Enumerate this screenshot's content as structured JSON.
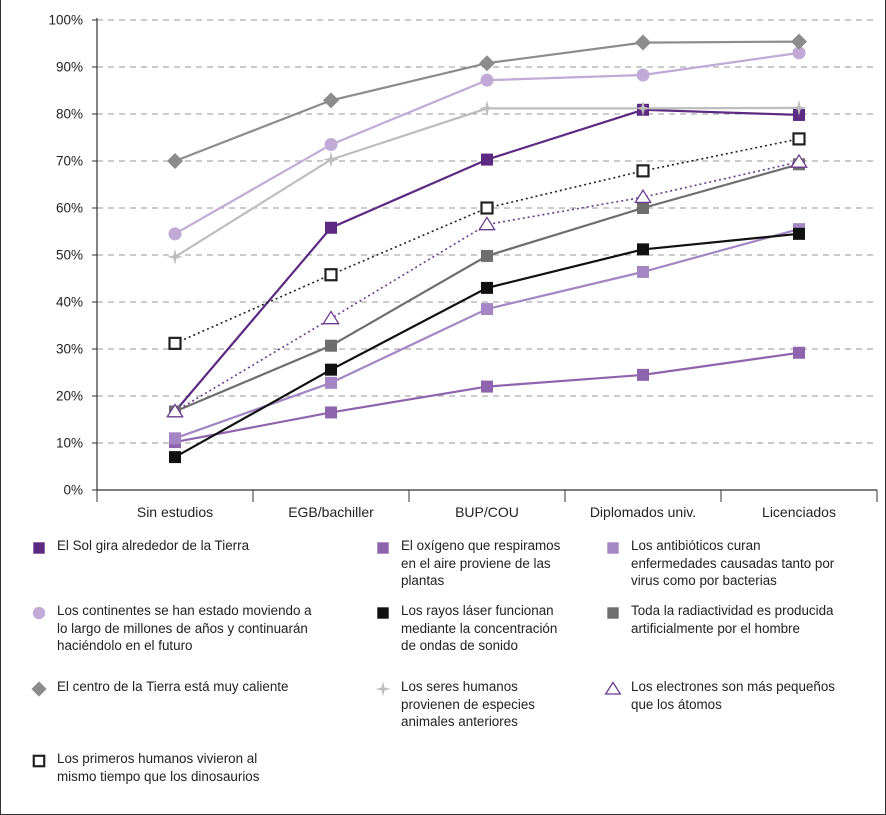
{
  "chart_data": {
    "type": "line",
    "title": "",
    "xlabel": "",
    "ylabel": "",
    "ylim": [
      0,
      100
    ],
    "y_ticks": [
      "0%",
      "10%",
      "20%",
      "30%",
      "40%",
      "50%",
      "60%",
      "70%",
      "80%",
      "90%",
      "100%"
    ],
    "grid": "horizontal dashed",
    "legend_position": "bottom",
    "categories": [
      "Sin estudios",
      "EGB/bachiller",
      "BUP/COU",
      "Diplomados univ.",
      "Licenciados"
    ],
    "series": [
      {
        "name": "El Sol gira alrededor de la Tierra",
        "values": [
          16.7,
          55.8,
          70.3,
          80.9,
          79.8
        ],
        "color": "#5c2a82",
        "marker": "square-filled",
        "line": "solid"
      },
      {
        "name": "El oxígeno que respiramos en el aire proviene de las plantas",
        "values": [
          10.2,
          16.5,
          22.0,
          24.5,
          29.2
        ],
        "color": "#8f64ae",
        "marker": "square-filled",
        "line": "solid"
      },
      {
        "name": "Los antibióticos curan enfermedades causadas tanto por virus como por bacterias",
        "values": [
          11.0,
          22.8,
          38.5,
          46.4,
          55.5
        ],
        "color": "#a486c4",
        "marker": "square-filled",
        "line": "solid"
      },
      {
        "name": "Los continentes se han estado moviendo a lo largo de millones de años y continuarán haciéndolo en el futuro",
        "values": [
          54.5,
          73.5,
          87.2,
          88.3,
          93.0
        ],
        "color": "#c1abd6",
        "marker": "circle",
        "line": "solid"
      },
      {
        "name": "Los rayos láser funcionan mediante la concentración de ondas de sonido",
        "values": [
          7.0,
          25.6,
          43.0,
          51.2,
          54.5
        ],
        "color": "#111111",
        "marker": "square-filled",
        "line": "solid"
      },
      {
        "name": "Toda la radiactividad es producida artificialmente por el hombre",
        "values": [
          16.7,
          30.7,
          49.8,
          60.0,
          69.3
        ],
        "color": "#6e6e6e",
        "marker": "square-filled",
        "line": "solid"
      },
      {
        "name": "El centro de la Tierra está muy caliente",
        "values": [
          70.0,
          82.9,
          90.8,
          95.2,
          95.4
        ],
        "color": "#8c8c8c",
        "marker": "diamond",
        "line": "solid"
      },
      {
        "name": "Los seres humanos provienen de especies animales anteriores",
        "values": [
          49.6,
          70.3,
          81.2,
          81.2,
          81.3
        ],
        "color": "#bdbdbd",
        "marker": "star",
        "line": "solid"
      },
      {
        "name": "Los electrones son más pequeños que los átomos",
        "values": [
          16.7,
          36.5,
          56.5,
          62.3,
          69.8
        ],
        "color": "#6a3b8f",
        "marker": "triangle-open",
        "line": "dotted"
      },
      {
        "name": "Los primeros humanos vivieron al mismo tiempo que los dinosaurios",
        "values": [
          31.2,
          45.8,
          60.0,
          67.9,
          74.7
        ],
        "color": "#222222",
        "marker": "square-open",
        "line": "dotted"
      }
    ]
  },
  "legend": [
    {
      "text": "El Sol gira alrededor de la Tierra",
      "series": 0
    },
    {
      "text": "El oxígeno que respiramos\nen el aire proviene de las\nplantas",
      "series": 1
    },
    {
      "text": "Los antibióticos curan\nenfermedades causadas tanto por\nvirus como por bacterias",
      "series": 2
    },
    {
      "text": "Los continentes se han estado moviendo a\nlo largo de millones de años y continuarán\nhaciéndolo en el futuro",
      "series": 3
    },
    {
      "text": "Los rayos láser funcionan\nmediante la concentración\nde ondas de sonido",
      "series": 4
    },
    {
      "text": "Toda la radiactividad es producida\nartificialmente por el hombre",
      "series": 5
    },
    {
      "text": "El centro de la Tierra está muy caliente",
      "series": 6
    },
    {
      "text": "Los seres humanos\nprovienen de especies\nanimales anteriores",
      "series": 7
    },
    {
      "text": "Los electrones son más pequeños\nque los átomos",
      "series": 8
    },
    {
      "text": "Los primeros humanos vivieron al\nmismo tiempo que los dinosaurios",
      "series": 9
    }
  ]
}
